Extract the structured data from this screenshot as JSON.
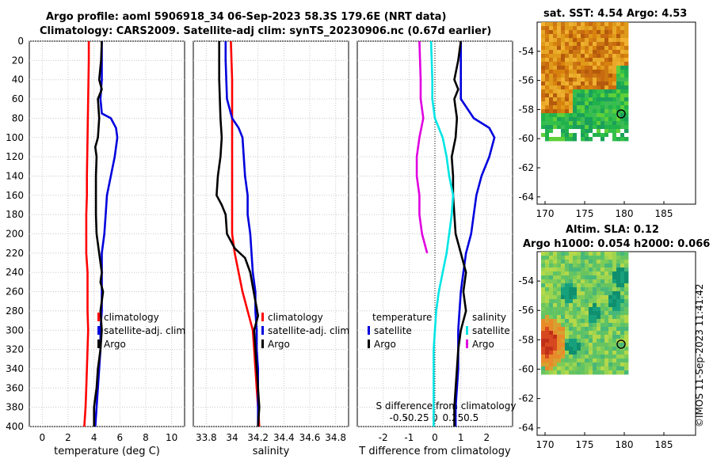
{
  "titles": {
    "line1": "Argo profile: aoml 5906918_34 06-Sep-2023 58.3S 179.6E (NRT data)",
    "line2": "Climatology: CARS2009. Satellite-adj clim: synTS_20230906.nc (0.67d earlier)",
    "sst": "sat. SST: 4.54 Argo: 4.53",
    "sla1": "Altim. SLA: 0.12",
    "sla2": "Argo h1000: 0.054 h2000: 0.066"
  },
  "credit": "©IMOS 11-Sep-2023 11:41:42",
  "colors": {
    "climatology": "#ff0000",
    "satellite": "#0000dd",
    "argo": "#000000",
    "t_satellite": "#00e5e5",
    "s_satellite": "#e000e0",
    "zero_line": "#000000"
  },
  "chart_data": [
    {
      "id": "temperature",
      "type": "line",
      "xlabel": "temperature (deg C)",
      "xlim": [
        -1,
        11
      ],
      "ylim": [
        400,
        0
      ],
      "xticks": [
        0,
        2,
        4,
        6,
        8,
        10
      ],
      "yticks": [
        0,
        20,
        40,
        60,
        80,
        100,
        120,
        140,
        160,
        180,
        200,
        220,
        240,
        260,
        280,
        300,
        320,
        340,
        360,
        380,
        400
      ],
      "legend": [
        "climatology",
        "satellite-adj. clim",
        "Argo"
      ],
      "series": [
        {
          "name": "climatology",
          "color_key": "climatology",
          "points": [
            [
              3.6,
              0
            ],
            [
              3.6,
              20
            ],
            [
              3.55,
              60
            ],
            [
              3.5,
              100
            ],
            [
              3.45,
              140
            ],
            [
              3.45,
              160
            ],
            [
              3.4,
              180
            ],
            [
              3.4,
              220
            ],
            [
              3.5,
              240
            ],
            [
              3.5,
              280
            ],
            [
              3.55,
              300
            ],
            [
              3.5,
              320
            ],
            [
              3.45,
              340
            ],
            [
              3.4,
              360
            ],
            [
              3.35,
              380
            ],
            [
              3.25,
              400
            ]
          ]
        },
        {
          "name": "satellite-adj. clim",
          "color_key": "satellite",
          "points": [
            [
              4.6,
              0
            ],
            [
              4.6,
              40
            ],
            [
              4.5,
              60
            ],
            [
              4.6,
              75
            ],
            [
              5.3,
              80
            ],
            [
              5.7,
              90
            ],
            [
              5.8,
              100
            ],
            [
              5.6,
              120
            ],
            [
              5.3,
              140
            ],
            [
              5.0,
              160
            ],
            [
              4.9,
              180
            ],
            [
              4.8,
              200
            ],
            [
              4.6,
              220
            ],
            [
              4.6,
              240
            ],
            [
              4.6,
              260
            ],
            [
              4.6,
              280
            ],
            [
              4.5,
              300
            ],
            [
              4.5,
              320
            ],
            [
              4.4,
              340
            ],
            [
              4.3,
              360
            ],
            [
              4.2,
              380
            ],
            [
              4.1,
              400
            ]
          ]
        },
        {
          "name": "Argo",
          "color_key": "argo",
          "points": [
            [
              4.6,
              0
            ],
            [
              4.55,
              20
            ],
            [
              4.4,
              40
            ],
            [
              4.6,
              50
            ],
            [
              4.3,
              60
            ],
            [
              4.4,
              80
            ],
            [
              4.3,
              100
            ],
            [
              4.1,
              110
            ],
            [
              4.2,
              120
            ],
            [
              4.15,
              140
            ],
            [
              4.15,
              160
            ],
            [
              4.15,
              180
            ],
            [
              4.2,
              200
            ],
            [
              4.4,
              220
            ],
            [
              4.6,
              240
            ],
            [
              4.5,
              250
            ],
            [
              4.7,
              260
            ],
            [
              4.5,
              280
            ],
            [
              4.6,
              300
            ],
            [
              4.5,
              320
            ],
            [
              4.3,
              340
            ],
            [
              4.2,
              360
            ],
            [
              4.0,
              380
            ],
            [
              4.0,
              400
            ]
          ]
        }
      ]
    },
    {
      "id": "salinity",
      "type": "line",
      "xlabel": "salinity",
      "xlim": [
        33.7,
        34.9
      ],
      "ylim": [
        400,
        0
      ],
      "xticks": [
        33.8,
        34,
        34.2,
        34.4,
        34.6,
        34.8
      ],
      "legend": [
        "climatology",
        "satellite-adj. clim",
        "Argo"
      ],
      "series": [
        {
          "name": "climatology",
          "color_key": "climatology",
          "points": [
            [
              33.99,
              0
            ],
            [
              34.0,
              40
            ],
            [
              34.0,
              100
            ],
            [
              34.0,
              140
            ],
            [
              34.0,
              180
            ],
            [
              34.0,
              200
            ],
            [
              34.02,
              220
            ],
            [
              34.05,
              240
            ],
            [
              34.08,
              260
            ],
            [
              34.12,
              280
            ],
            [
              34.16,
              300
            ],
            [
              34.17,
              320
            ],
            [
              34.18,
              340
            ],
            [
              34.19,
              360
            ],
            [
              34.2,
              380
            ],
            [
              34.21,
              400
            ]
          ]
        },
        {
          "name": "satellite-adj. clim",
          "color_key": "satellite",
          "points": [
            [
              33.95,
              0
            ],
            [
              33.95,
              20
            ],
            [
              33.96,
              60
            ],
            [
              34.0,
              80
            ],
            [
              34.05,
              90
            ],
            [
              34.08,
              100
            ],
            [
              34.09,
              120
            ],
            [
              34.1,
              140
            ],
            [
              34.12,
              160
            ],
            [
              34.12,
              180
            ],
            [
              34.14,
              200
            ],
            [
              34.15,
              220
            ],
            [
              34.16,
              240
            ],
            [
              34.18,
              260
            ],
            [
              34.18,
              280
            ],
            [
              34.19,
              300
            ],
            [
              34.19,
              320
            ],
            [
              34.2,
              340
            ],
            [
              34.2,
              360
            ],
            [
              34.2,
              380
            ],
            [
              34.2,
              400
            ]
          ]
        },
        {
          "name": "Argo",
          "color_key": "argo",
          "points": [
            [
              33.9,
              0
            ],
            [
              33.9,
              40
            ],
            [
              33.91,
              80
            ],
            [
              33.92,
              100
            ],
            [
              33.91,
              120
            ],
            [
              33.89,
              140
            ],
            [
              33.88,
              160
            ],
            [
              33.92,
              170
            ],
            [
              33.95,
              180
            ],
            [
              33.96,
              200
            ],
            [
              34.02,
              215
            ],
            [
              34.1,
              225
            ],
            [
              34.14,
              240
            ],
            [
              34.16,
              255
            ],
            [
              34.18,
              270
            ],
            [
              34.2,
              285
            ],
            [
              34.17,
              300
            ],
            [
              34.18,
              320
            ],
            [
              34.19,
              340
            ],
            [
              34.2,
              360
            ],
            [
              34.21,
              380
            ],
            [
              34.2,
              400
            ]
          ]
        }
      ]
    },
    {
      "id": "differences",
      "type": "line",
      "xlabel": "T difference from climatology",
      "xlabel_top": "S difference from climatology",
      "xlim": [
        -3,
        3
      ],
      "ylim": [
        400,
        0
      ],
      "xticks": [
        -2,
        -1,
        0,
        1,
        2
      ],
      "xticks_s": [
        -0.5,
        -0.25,
        0,
        0.25,
        0.5
      ],
      "legend_t": {
        "title": "temperature",
        "entries": [
          "satellite",
          "Argo"
        ]
      },
      "legend_s": {
        "title": "salinity",
        "entries": [
          "satellite",
          "Argo"
        ]
      },
      "series": [
        {
          "name": "T satellite",
          "color_key": "satellite",
          "points": [
            [
              1,
              0
            ],
            [
              1,
              40
            ],
            [
              1,
              60
            ],
            [
              1.5,
              80
            ],
            [
              2.1,
              90
            ],
            [
              2.3,
              100
            ],
            [
              2.1,
              120
            ],
            [
              1.8,
              140
            ],
            [
              1.6,
              160
            ],
            [
              1.5,
              180
            ],
            [
              1.4,
              200
            ],
            [
              1.2,
              220
            ],
            [
              1.1,
              240
            ],
            [
              1.0,
              260
            ],
            [
              0.95,
              280
            ],
            [
              0.9,
              300
            ],
            [
              0.9,
              320
            ],
            [
              0.9,
              340
            ],
            [
              0.85,
              360
            ],
            [
              0.8,
              380
            ],
            [
              0.8,
              400
            ]
          ]
        },
        {
          "name": "T Argo",
          "color_key": "argo",
          "points": [
            [
              1,
              0
            ],
            [
              0.9,
              20
            ],
            [
              0.75,
              40
            ],
            [
              0.9,
              50
            ],
            [
              0.75,
              60
            ],
            [
              0.8,
              70
            ],
            [
              0.85,
              80
            ],
            [
              0.8,
              100
            ],
            [
              0.65,
              120
            ],
            [
              0.7,
              140
            ],
            [
              0.7,
              160
            ],
            [
              0.75,
              180
            ],
            [
              0.8,
              200
            ],
            [
              1.0,
              220
            ],
            [
              1.2,
              240
            ],
            [
              1.1,
              260
            ],
            [
              1.2,
              280
            ],
            [
              1.0,
              300
            ],
            [
              0.9,
              320
            ],
            [
              0.85,
              340
            ],
            [
              0.8,
              360
            ],
            [
              0.75,
              380
            ],
            [
              0.75,
              400
            ]
          ]
        },
        {
          "name": "S satellite",
          "color_key": "t_satellite",
          "points": [
            [
              -0.15,
              0
            ],
            [
              -0.1,
              40
            ],
            [
              -0.1,
              60
            ],
            [
              0.0,
              80
            ],
            [
              0.3,
              100
            ],
            [
              0.45,
              120
            ],
            [
              0.55,
              140
            ],
            [
              0.7,
              160
            ],
            [
              0.65,
              180
            ],
            [
              0.55,
              200
            ],
            [
              0.45,
              220
            ],
            [
              0.3,
              240
            ],
            [
              0.15,
              260
            ],
            [
              0.05,
              280
            ],
            [
              0.0,
              300
            ],
            [
              -0.05,
              320
            ],
            [
              -0.05,
              340
            ],
            [
              -0.05,
              360
            ],
            [
              -0.05,
              380
            ],
            [
              -0.05,
              400
            ]
          ]
        },
        {
          "name": "S Argo",
          "color_key": "s_satellite",
          "points": [
            [
              -0.6,
              0
            ],
            [
              -0.55,
              40
            ],
            [
              -0.55,
              60
            ],
            [
              -0.45,
              80
            ],
            [
              -0.6,
              100
            ],
            [
              -0.7,
              120
            ],
            [
              -0.7,
              140
            ],
            [
              -0.6,
              160
            ],
            [
              -0.6,
              180
            ],
            [
              -0.5,
              200
            ],
            [
              -0.3,
              220
            ]
          ]
        }
      ]
    },
    {
      "id": "sst_map",
      "type": "heatmap",
      "xlim": [
        169,
        189
      ],
      "ylim": [
        -64.5,
        -52
      ],
      "xticks": [
        170,
        175,
        180,
        185
      ],
      "yticks": [
        -54,
        -56,
        -58,
        -60,
        -62,
        -64
      ],
      "argo_position": [
        179.6,
        -58.3
      ]
    },
    {
      "id": "sla_map",
      "type": "heatmap",
      "xlim": [
        169,
        189
      ],
      "ylim": [
        -64.5,
        -52
      ],
      "xticks": [
        170,
        175,
        180,
        185
      ],
      "yticks": [
        -54,
        -56,
        -58,
        -60,
        -62,
        -64
      ],
      "argo_position": [
        179.6,
        -58.3
      ]
    }
  ]
}
